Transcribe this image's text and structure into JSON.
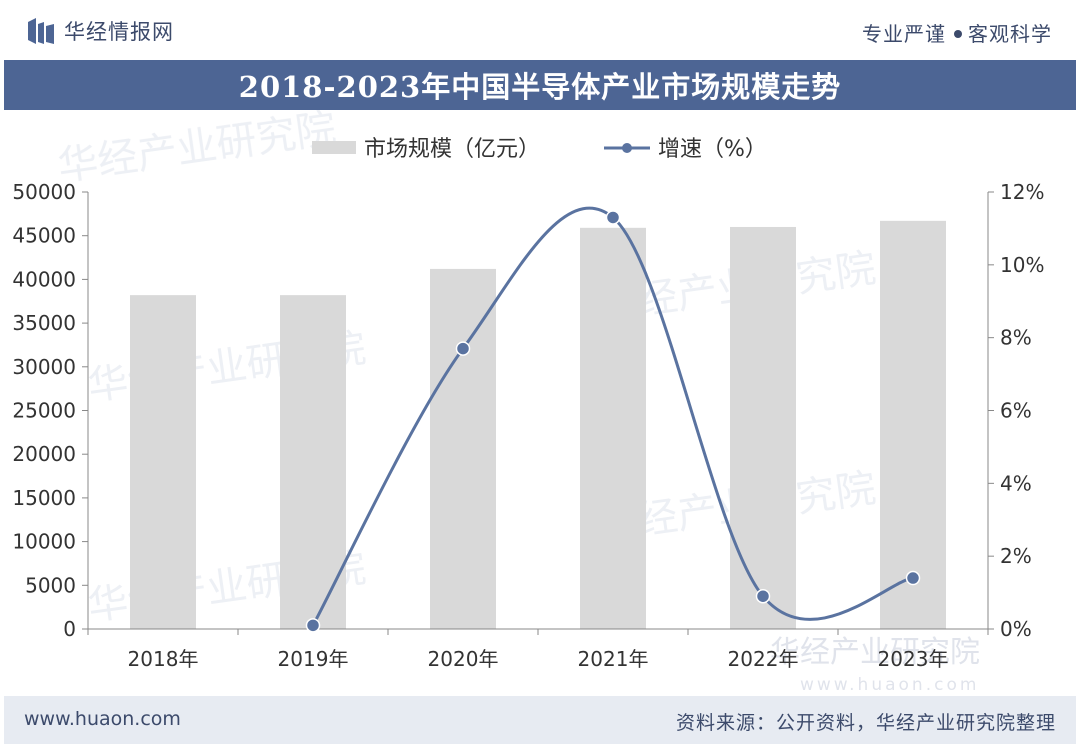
{
  "header": {
    "brand": "华经情报网",
    "slogan_left": "专业严谨",
    "slogan_right": "客观科学"
  },
  "title": "2018-2023年中国半导体产业市场规模走势",
  "footer": {
    "url": "www.huaon.com",
    "source": "资料来源：公开资料，华经产业研究院整理"
  },
  "watermark": {
    "name": "华经产业研究院",
    "url": "www.huaon.com"
  },
  "colors": {
    "header_band": "#4d6594",
    "bar": "#d9d9d9",
    "line": "#5a73a0",
    "text": "#3c4a6b"
  },
  "chart_data": {
    "type": "bar",
    "categories": [
      "2018年",
      "2019年",
      "2020年",
      "2021年",
      "2022年",
      "2023年"
    ],
    "series": [
      {
        "name": "市场规模（亿元）",
        "type": "bar",
        "axis": "left",
        "values": [
          38200,
          38200,
          41200,
          45900,
          46000,
          46700
        ]
      },
      {
        "name": "增速（%）",
        "type": "line",
        "axis": "right",
        "values": [
          null,
          0.1,
          7.7,
          11.3,
          0.9,
          1.4
        ]
      }
    ],
    "y_left": {
      "min": 0,
      "max": 50000,
      "ticks": [
        "0",
        "5000",
        "10000",
        "15000",
        "20000",
        "25000",
        "30000",
        "35000",
        "40000",
        "45000",
        "50000"
      ]
    },
    "y_right": {
      "min": 0,
      "max": 12,
      "ticks": [
        "0%",
        "2%",
        "4%",
        "6%",
        "8%",
        "10%",
        "12%"
      ]
    },
    "legend_position": "top",
    "grid": false
  }
}
